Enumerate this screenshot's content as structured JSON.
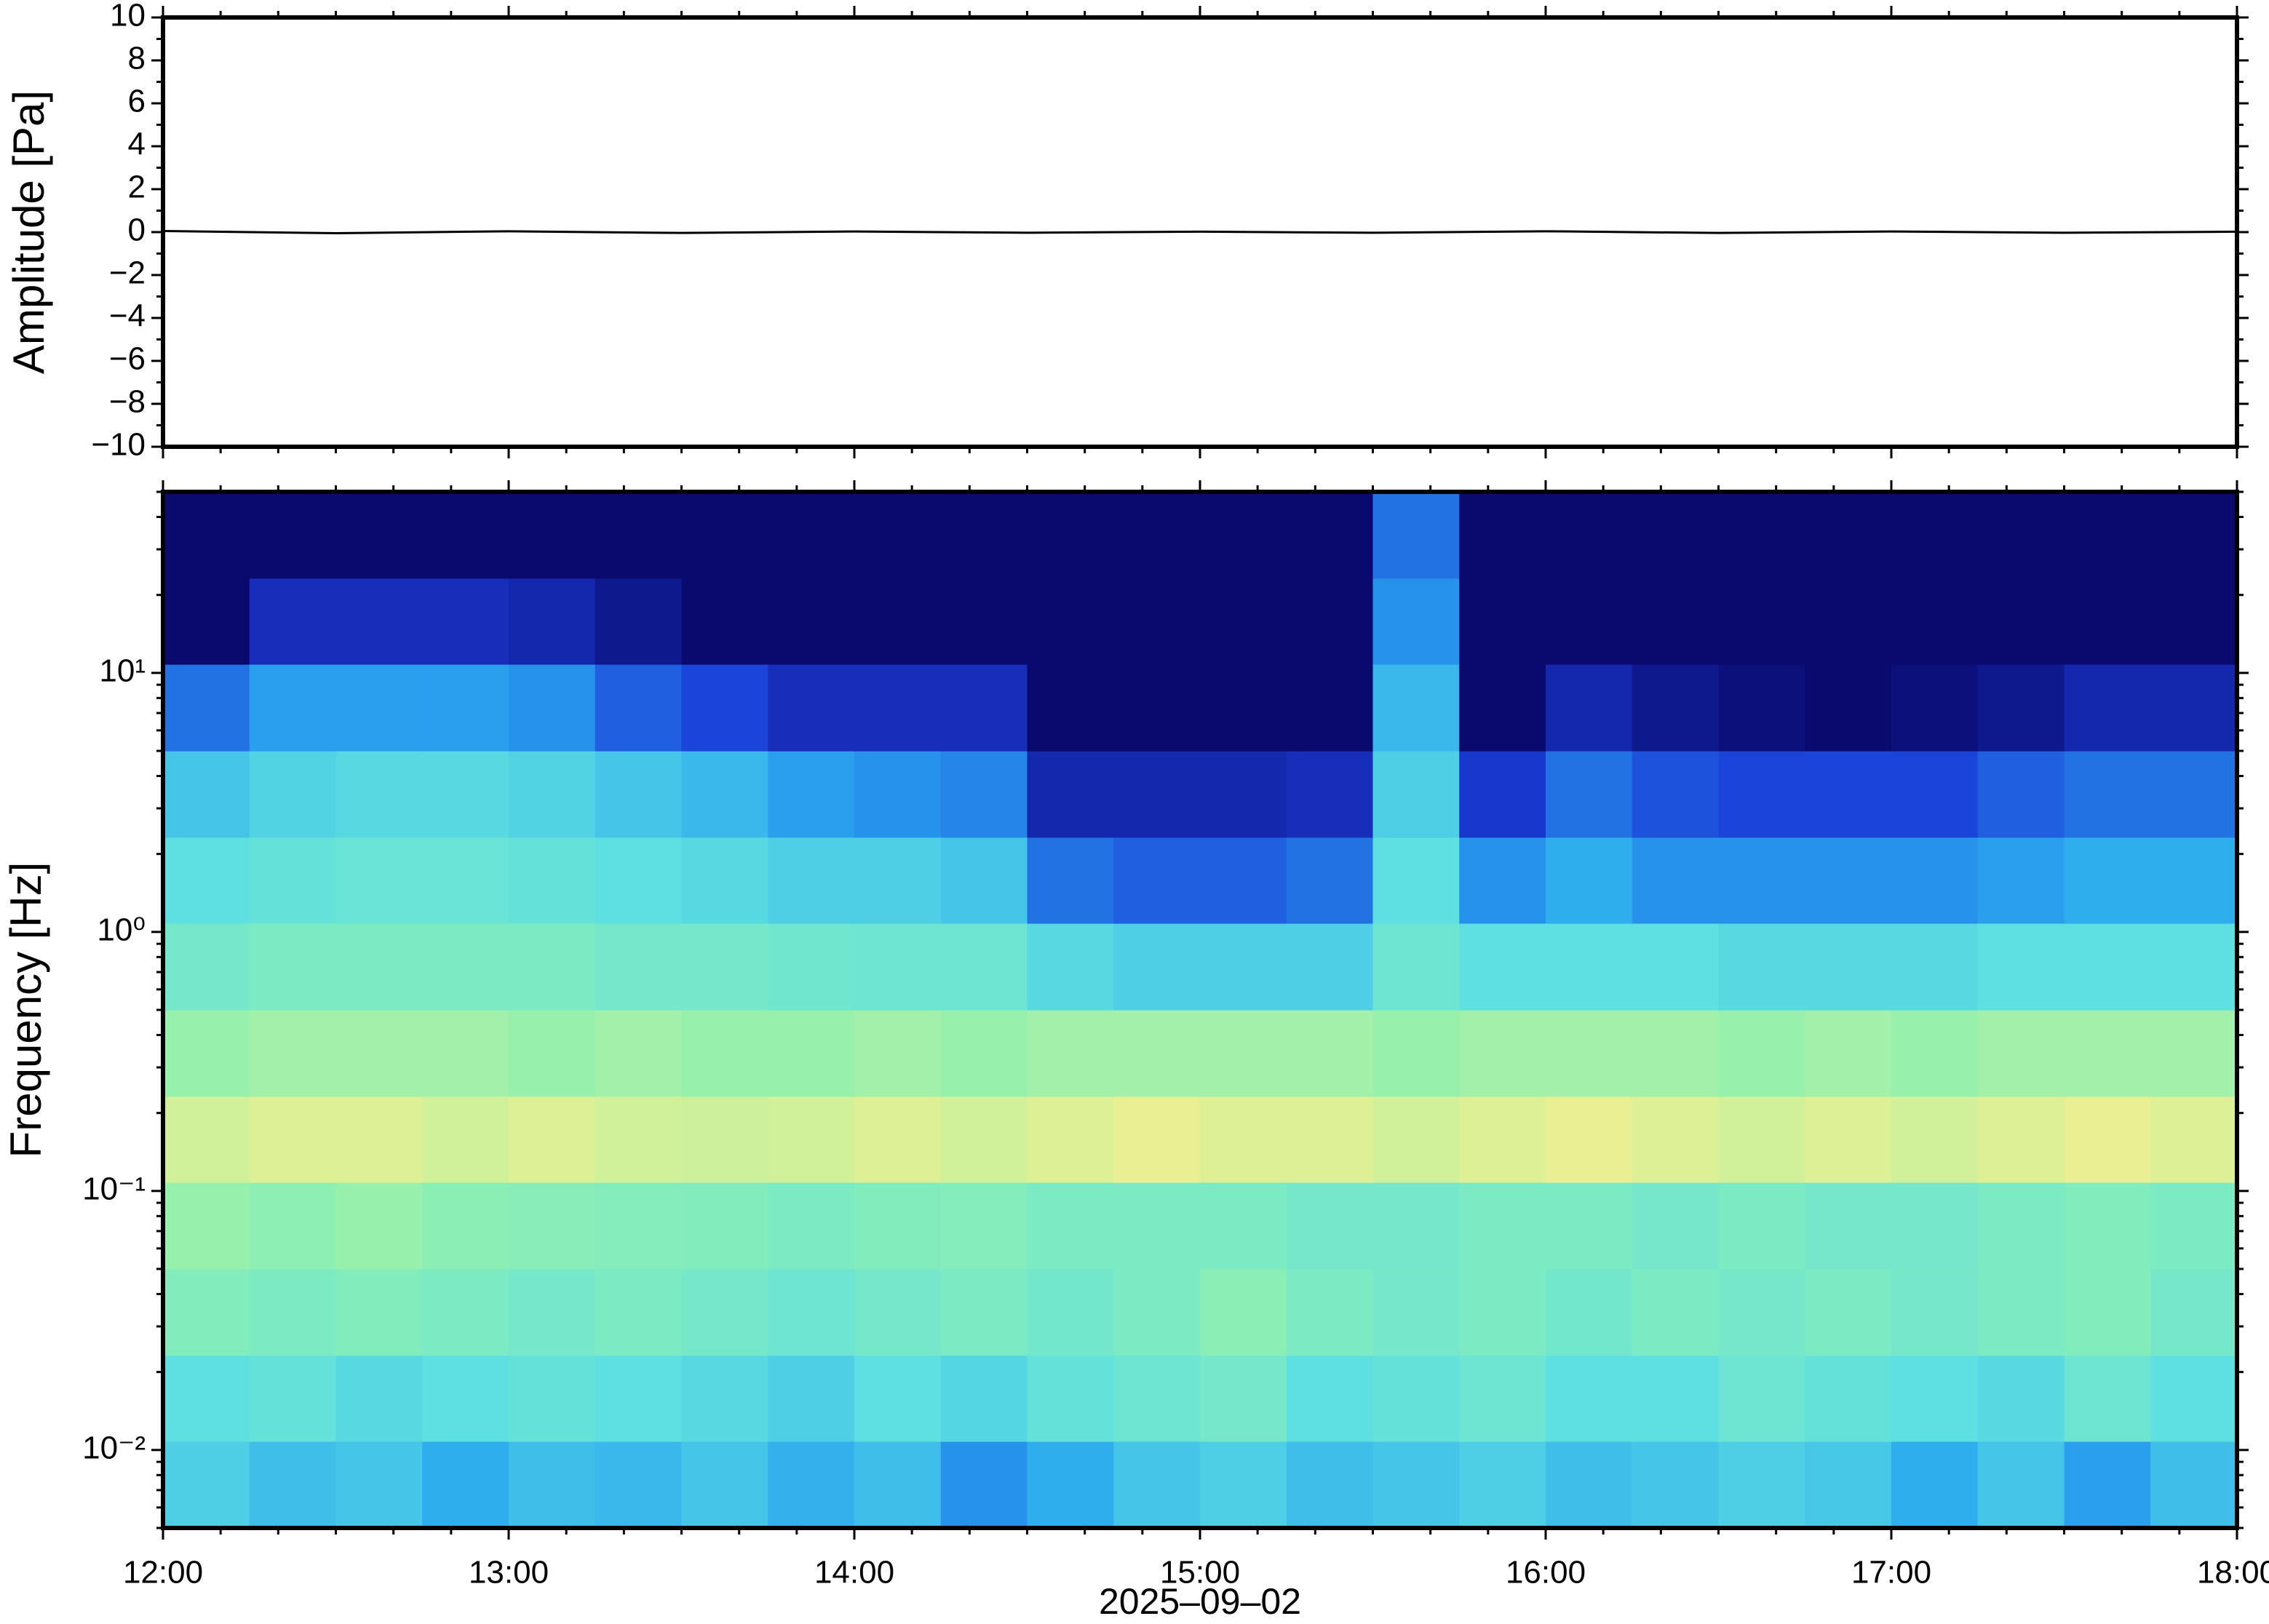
{
  "chart_data": [
    {
      "type": "line",
      "ylabel": "Amplitude [Pa]",
      "x": [
        "2025-09-02T12:00",
        "2025-09-02T12:30",
        "2025-09-02T13:00",
        "2025-09-02T13:30",
        "2025-09-02T14:00",
        "2025-09-02T14:30",
        "2025-09-02T15:00",
        "2025-09-02T15:30",
        "2025-09-02T16:00",
        "2025-09-02T16:30",
        "2025-09-02T17:00",
        "2025-09-02T17:30",
        "2025-09-02T18:00"
      ],
      "series": [
        {
          "color": "#000000",
          "values": [
            0.05,
            -0.05,
            0.04,
            -0.04,
            0.03,
            -0.03,
            0.02,
            -0.03,
            0.04,
            -0.04,
            0.03,
            -0.03,
            0.02
          ]
        }
      ],
      "xlim": [
        "2025-09-02T12:00",
        "2025-09-02T18:00"
      ],
      "xticks": [
        "2025-09-02T12:00",
        "2025-09-02T13:00",
        "2025-09-02T14:00",
        "2025-09-02T15:00",
        "2025-09-02T16:00",
        "2025-09-02T17:00",
        "2025-09-02T18:00"
      ],
      "ylim": [
        -10,
        10
      ],
      "yticks": [
        {
          "value": -10,
          "label": "−10"
        },
        {
          "value": -8,
          "label": "−8"
        },
        {
          "value": -6,
          "label": "−6"
        },
        {
          "value": -4,
          "label": "−4"
        },
        {
          "value": -2,
          "label": "−2"
        },
        0,
        2,
        4,
        6,
        8,
        10
      ]
    },
    {
      "type": "spectrogram",
      "ylabel": "Frequency [Hz]",
      "xlabel": "2025–09–02",
      "log_y": true,
      "colormap": [
        "#0a0a6e",
        "#1a3cd8",
        "#2aa8f0",
        "#5ee0e0",
        "#90f0b0",
        "#f0f090",
        "#f8c070"
      ],
      "xbins": [
        "2025-09-02T12:00",
        "2025-09-02T12:15",
        "2025-09-02T12:30",
        "2025-09-02T12:45",
        "2025-09-02T13:00",
        "2025-09-02T13:15",
        "2025-09-02T13:30",
        "2025-09-02T13:45",
        "2025-09-02T14:00",
        "2025-09-02T14:15",
        "2025-09-02T14:30",
        "2025-09-02T14:45",
        "2025-09-02T15:00",
        "2025-09-02T15:15",
        "2025-09-02T15:30",
        "2025-09-02T15:45",
        "2025-09-02T16:00",
        "2025-09-02T16:15",
        "2025-09-02T16:30",
        "2025-09-02T16:45",
        "2025-09-02T17:00",
        "2025-09-02T17:15",
        "2025-09-02T17:30",
        "2025-09-02T17:45",
        "2025-09-02T18:00"
      ],
      "ybins": [
        0.005,
        0.0108,
        0.0232,
        0.05,
        0.108,
        0.232,
        0.5,
        1.08,
        2.32,
        5,
        10.8,
        23.2,
        50
      ],
      "z": [
        [
          0.45,
          0.4,
          0.42,
          0.35,
          0.4,
          0.38,
          0.42,
          0.36,
          0.4,
          0.3,
          0.35,
          0.42,
          0.45,
          0.4,
          0.42,
          0.45,
          0.4,
          0.42,
          0.45,
          0.43,
          0.35,
          0.42,
          0.32,
          0.4
        ],
        [
          0.5,
          0.52,
          0.48,
          0.5,
          0.52,
          0.5,
          0.48,
          0.45,
          0.5,
          0.47,
          0.52,
          0.55,
          0.58,
          0.5,
          0.52,
          0.55,
          0.5,
          0.5,
          0.55,
          0.52,
          0.5,
          0.48,
          0.55,
          0.5
        ],
        [
          0.62,
          0.6,
          0.62,
          0.6,
          0.58,
          0.6,
          0.58,
          0.55,
          0.58,
          0.6,
          0.57,
          0.6,
          0.65,
          0.6,
          0.58,
          0.6,
          0.57,
          0.6,
          0.58,
          0.6,
          0.58,
          0.6,
          0.62,
          0.58
        ],
        [
          0.68,
          0.66,
          0.68,
          0.65,
          0.64,
          0.63,
          0.62,
          0.6,
          0.62,
          0.63,
          0.6,
          0.6,
          0.6,
          0.58,
          0.58,
          0.6,
          0.6,
          0.58,
          0.6,
          0.58,
          0.58,
          0.6,
          0.62,
          0.6
        ],
        [
          0.78,
          0.8,
          0.8,
          0.78,
          0.8,
          0.78,
          0.77,
          0.78,
          0.8,
          0.78,
          0.8,
          0.82,
          0.8,
          0.8,
          0.78,
          0.8,
          0.82,
          0.8,
          0.78,
          0.8,
          0.78,
          0.8,
          0.82,
          0.8
        ],
        [
          0.68,
          0.7,
          0.7,
          0.7,
          0.68,
          0.7,
          0.68,
          0.68,
          0.7,
          0.68,
          0.7,
          0.7,
          0.7,
          0.7,
          0.68,
          0.7,
          0.7,
          0.7,
          0.68,
          0.7,
          0.68,
          0.7,
          0.7,
          0.7
        ],
        [
          0.58,
          0.6,
          0.6,
          0.6,
          0.6,
          0.58,
          0.58,
          0.56,
          0.55,
          0.55,
          0.48,
          0.45,
          0.45,
          0.45,
          0.55,
          0.5,
          0.5,
          0.5,
          0.48,
          0.48,
          0.48,
          0.5,
          0.5,
          0.5
        ],
        [
          0.5,
          0.52,
          0.54,
          0.54,
          0.52,
          0.5,
          0.48,
          0.45,
          0.45,
          0.42,
          0.25,
          0.22,
          0.22,
          0.25,
          0.5,
          0.3,
          0.35,
          0.3,
          0.3,
          0.3,
          0.3,
          0.32,
          0.35,
          0.35
        ],
        [
          0.42,
          0.46,
          0.48,
          0.48,
          0.46,
          0.42,
          0.38,
          0.32,
          0.3,
          0.28,
          0.1,
          0.1,
          0.1,
          0.12,
          0.45,
          0.15,
          0.25,
          0.2,
          0.18,
          0.18,
          0.18,
          0.22,
          0.25,
          0.25
        ],
        [
          0.25,
          0.32,
          0.32,
          0.32,
          0.3,
          0.22,
          0.18,
          0.12,
          0.12,
          0.12,
          0,
          0,
          0,
          0,
          0.38,
          0,
          0.1,
          0.05,
          0.02,
          0,
          0.02,
          0.05,
          0.1,
          0.1
        ],
        [
          0,
          0.12,
          0.12,
          0.12,
          0.1,
          0.05,
          0,
          0,
          0,
          0,
          0,
          0,
          0,
          0,
          0.3,
          0,
          0,
          0,
          0,
          0,
          0,
          0,
          0,
          0
        ],
        [
          0,
          0,
          0,
          0,
          0,
          0,
          0,
          0,
          0,
          0,
          0,
          0,
          0,
          0,
          0.25,
          0,
          0,
          0,
          0,
          0,
          0,
          0,
          0,
          0
        ]
      ],
      "xlim": [
        "2025-09-02T12:00",
        "2025-09-02T18:00"
      ],
      "xticks": [
        {
          "value": "2025-09-02T12:00",
          "label": "12:00"
        },
        {
          "value": "2025-09-02T13:00",
          "label": "13:00"
        },
        {
          "value": "2025-09-02T14:00",
          "label": "14:00"
        },
        {
          "value": "2025-09-02T15:00",
          "label": "15:00"
        },
        {
          "value": "2025-09-02T16:00",
          "label": "16:00"
        },
        {
          "value": "2025-09-02T17:00",
          "label": "17:00"
        },
        {
          "value": "2025-09-02T18:00",
          "label": "18:00"
        }
      ],
      "ylim": [
        0.005,
        50
      ],
      "yticks": [
        {
          "value": 0.01,
          "label": "10⁻²"
        },
        {
          "value": 0.1,
          "label": "10⁻¹"
        },
        {
          "value": 1,
          "label": "10⁰"
        },
        {
          "value": 10,
          "label": "10¹"
        }
      ]
    }
  ]
}
